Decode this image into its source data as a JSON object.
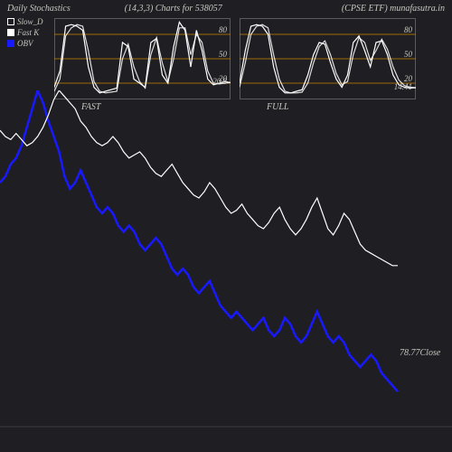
{
  "colors": {
    "background": "#1e1e23",
    "text": "#c8c7c0",
    "grid": "#3a3a3f",
    "border": "#5a5a5f",
    "slow_d": "#ffffff",
    "fast_k": "#ffffff",
    "obv": "#1919ff",
    "ref_line": "#cc8400"
  },
  "header": {
    "title_left": "Daily Stochastics",
    "title_mid": "(14,3,3) Charts for 538057",
    "title_right": "(CPSE ETF) munafasutra.in"
  },
  "legend": {
    "items": [
      {
        "label": "Slow_D",
        "color": "#ffffff",
        "fill": false
      },
      {
        "label": "Fast K",
        "color": "#ffffff",
        "fill": true
      },
      {
        "label": "OBV",
        "color": "#1919ff",
        "fill": true
      }
    ]
  },
  "sub_chart_common": {
    "width": 195,
    "height": 90,
    "ylim": [
      0,
      100
    ],
    "ref_lines": [
      20,
      50,
      80
    ],
    "axis_labels": [
      "20",
      "50",
      "80"
    ]
  },
  "fast_chart": {
    "label": "FAST",
    "value_label": "20.8",
    "value_y": 20.8,
    "series_a": [
      15,
      35,
      90,
      92,
      90,
      85,
      40,
      15,
      8,
      10,
      12,
      14,
      70,
      65,
      25,
      20,
      15,
      70,
      75,
      30,
      20,
      65,
      95,
      85,
      40,
      85,
      60,
      25,
      18,
      20,
      22,
      20.8
    ],
    "series_b": [
      10,
      25,
      78,
      88,
      92,
      90,
      60,
      22,
      10,
      8,
      9,
      10,
      50,
      68,
      40,
      22,
      14,
      55,
      76,
      45,
      22,
      50,
      88,
      88,
      55,
      80,
      70,
      35,
      20,
      19,
      20,
      20.8
    ]
  },
  "full_chart": {
    "label": "FULL",
    "value_label": "14.41",
    "value_y": 14.41,
    "series_a": [
      20,
      60,
      90,
      92,
      90,
      80,
      40,
      15,
      8,
      8,
      10,
      12,
      30,
      55,
      70,
      68,
      45,
      25,
      15,
      30,
      70,
      78,
      60,
      40,
      70,
      72,
      55,
      30,
      18,
      15,
      14,
      14.41
    ],
    "series_b": [
      15,
      45,
      80,
      90,
      92,
      88,
      55,
      25,
      10,
      8,
      8,
      9,
      20,
      45,
      65,
      72,
      55,
      32,
      18,
      22,
      55,
      76,
      70,
      48,
      60,
      74,
      62,
      40,
      24,
      17,
      15,
      14.41
    ]
  },
  "main_chart": {
    "close_label": "78.77Close",
    "close_y_offset": 285,
    "price_series": [
      87,
      85,
      84,
      86,
      84,
      82,
      83,
      85,
      88,
      92,
      97,
      100,
      98,
      96,
      94,
      90,
      88,
      85,
      83,
      82,
      83,
      85,
      83,
      80,
      78,
      79,
      80,
      78,
      75,
      73,
      72,
      74,
      76,
      73,
      70,
      68,
      66,
      65,
      67,
      70,
      68,
      65,
      62,
      60,
      61,
      63,
      60,
      58,
      56,
      55,
      57,
      60,
      62,
      58,
      55,
      53,
      55,
      58,
      62,
      65,
      60,
      55,
      53,
      56,
      60,
      58,
      54,
      50,
      48,
      47,
      46,
      45,
      44,
      43,
      43
    ],
    "obv_series": [
      70,
      72,
      76,
      78,
      82,
      88,
      94,
      100,
      96,
      90,
      85,
      80,
      72,
      68,
      70,
      74,
      70,
      66,
      62,
      60,
      62,
      60,
      56,
      54,
      56,
      54,
      50,
      48,
      50,
      52,
      50,
      46,
      42,
      40,
      42,
      40,
      36,
      34,
      36,
      38,
      34,
      30,
      28,
      26,
      28,
      26,
      24,
      22,
      24,
      26,
      22,
      20,
      22,
      26,
      24,
      20,
      18,
      20,
      24,
      28,
      24,
      20,
      18,
      20,
      18,
      14,
      12,
      10,
      12,
      14,
      12,
      8,
      6,
      4,
      2
    ],
    "y_range": [
      0,
      100
    ],
    "x_range": [
      0,
      74
    ]
  }
}
